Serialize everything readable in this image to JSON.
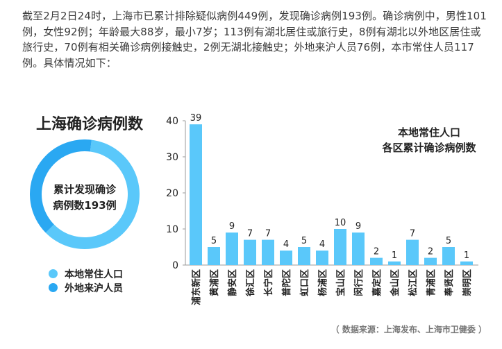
{
  "intro_text": "截至2月2日24时，上海市已累计排除疑似病例449例，发现确诊病例193例。确诊病例中，男性101例，女性92例；年龄最大88岁，最小7岁；113例有湖北居住或旅行史，8例有湖北以外地区居住或旅行史，70例有相关确诊病例接触史，2例无湖北接触史；外地来沪人员76例，本市常住人员117例。具体情况如下：",
  "source_text": "（ 数据来源：上海发布、上海市卫健委 ）",
  "colors": {
    "local": "#5ac8fa",
    "nonlocal": "#2aa8f2",
    "axis": "#999999"
  },
  "chart_data": [
    {
      "type": "pie",
      "donut": true,
      "title": "上海确诊病例数",
      "center_text": [
        "累计发现确诊",
        "病例数193例"
      ],
      "categories": [
        "本地常住人口",
        "外地来沪人员"
      ],
      "values": [
        117,
        76
      ],
      "colors": [
        "#5ac8fa",
        "#2aa8f2"
      ],
      "legend_placement": "bottom"
    },
    {
      "type": "bar",
      "title": [
        "本地常住人口",
        "各区累计确诊病例数"
      ],
      "categories": [
        "浦东新区",
        "黄浦区",
        "静安区",
        "徐汇区",
        "长宁区",
        "普陀区",
        "虹口区",
        "杨浦区",
        "宝山区",
        "闵行区",
        "嘉定区",
        "金山区",
        "松江区",
        "青浦区",
        "奉贤区",
        "崇明区"
      ],
      "values": [
        39,
        5,
        9,
        7,
        7,
        4,
        5,
        4,
        10,
        9,
        2,
        1,
        7,
        2,
        5,
        1
      ],
      "ylim": [
        0,
        40
      ],
      "yticks": [
        0,
        10,
        20,
        30,
        40
      ],
      "grid": false,
      "color": "#5ac8fa"
    }
  ]
}
